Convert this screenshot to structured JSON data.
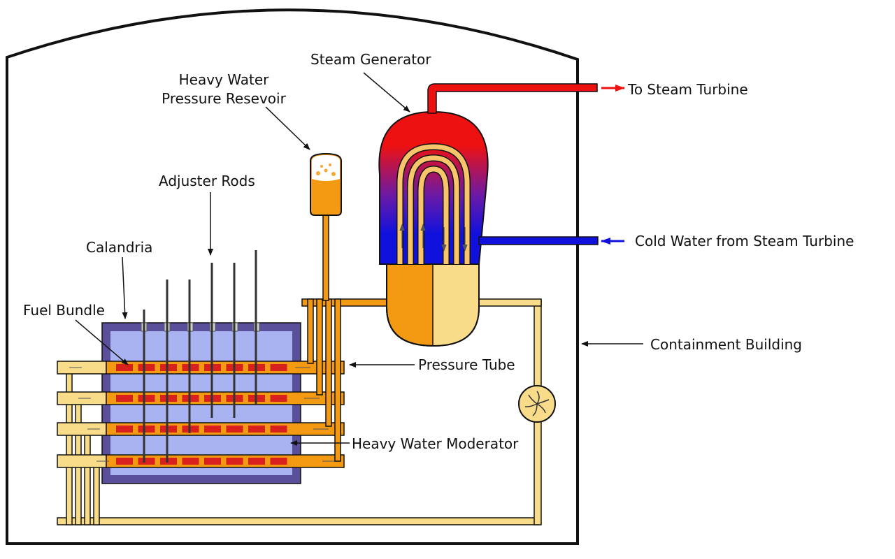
{
  "labels": {
    "steam_generator": "Steam Generator",
    "heavy_water_reservoir_line1": "Heavy Water",
    "heavy_water_reservoir_line2": "Pressure Resevoir",
    "adjuster_rods": "Adjuster Rods",
    "calandria": "Calandria",
    "fuel_bundle": "Fuel Bundle",
    "to_steam_turbine": "To Steam Turbine",
    "cold_water": "Cold Water from Steam Turbine",
    "containment_building": "Containment Building",
    "pressure_tube": "Pressure Tube",
    "heavy_water_moderator": "Heavy Water Moderator"
  },
  "colors": {
    "hot_steam": "#ee1111",
    "cold_water": "#1111dd",
    "hot_heavy_water": "#f39a12",
    "cool_heavy_water": "#f8dc8a",
    "moderator": "#a9b3f2",
    "calandria_wall": "#5a4f9a",
    "fuel": "#d8211c",
    "outline": "#111111"
  }
}
